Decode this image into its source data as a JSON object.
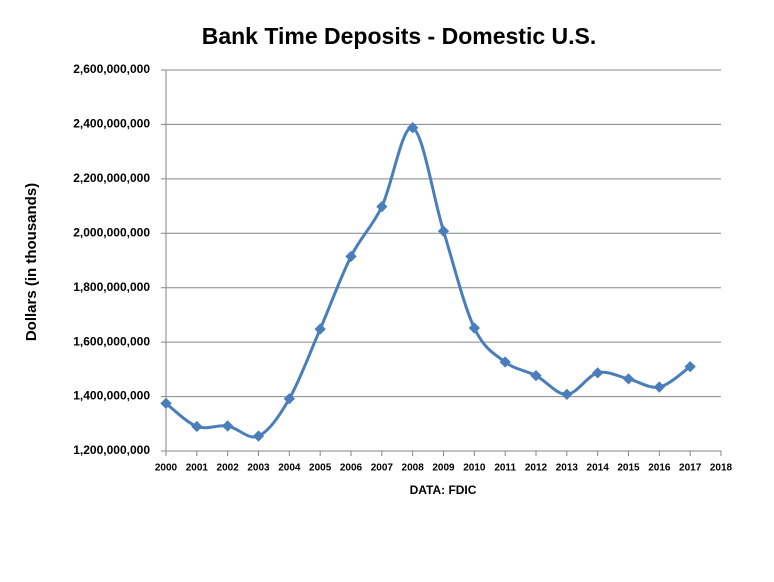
{
  "chart_data": {
    "type": "line",
    "title": "Bank Time Deposits - Domestic U.S.",
    "y_label": "Dollars (in thousands)",
    "x_label": "DATA:  FDIC",
    "x": [
      2000,
      2001,
      2002,
      2003,
      2004,
      2005,
      2006,
      2007,
      2008,
      2009,
      2010,
      2011,
      2012,
      2013,
      2014,
      2015,
      2016,
      2017
    ],
    "series": [
      {
        "name": "Time Deposits",
        "color": "#4a7ebb",
        "values": [
          1375000000,
          1290000000,
          1292000000,
          1255000000,
          1392000000,
          1648000000,
          1915000000,
          2098000000,
          2388000000,
          2008000000,
          1652000000,
          1527000000,
          1477000000,
          1408000000,
          1487000000,
          1465000000,
          1435000000,
          1510000000
        ]
      }
    ],
    "xlim": [
      2000,
      2018
    ],
    "xticks": [
      2000,
      2001,
      2002,
      2003,
      2004,
      2005,
      2006,
      2007,
      2008,
      2009,
      2010,
      2011,
      2012,
      2013,
      2014,
      2015,
      2016,
      2017,
      2018
    ],
    "ylim": [
      1200000000,
      2600000000
    ],
    "yticks": [
      {
        "value": 1200000000,
        "label": "1,200,000,000"
      },
      {
        "value": 1400000000,
        "label": "1,400,000,000"
      },
      {
        "value": 1600000000,
        "label": "1,600,000,000"
      },
      {
        "value": 1800000000,
        "label": "1,800,000,000"
      },
      {
        "value": 2000000000,
        "label": "2,000,000,000"
      },
      {
        "value": 2200000000,
        "label": "2,200,000,000"
      },
      {
        "value": 2400000000,
        "label": "2,400,000,000"
      },
      {
        "value": 2600000000,
        "label": "2,600,000,000"
      }
    ],
    "grid": true
  }
}
